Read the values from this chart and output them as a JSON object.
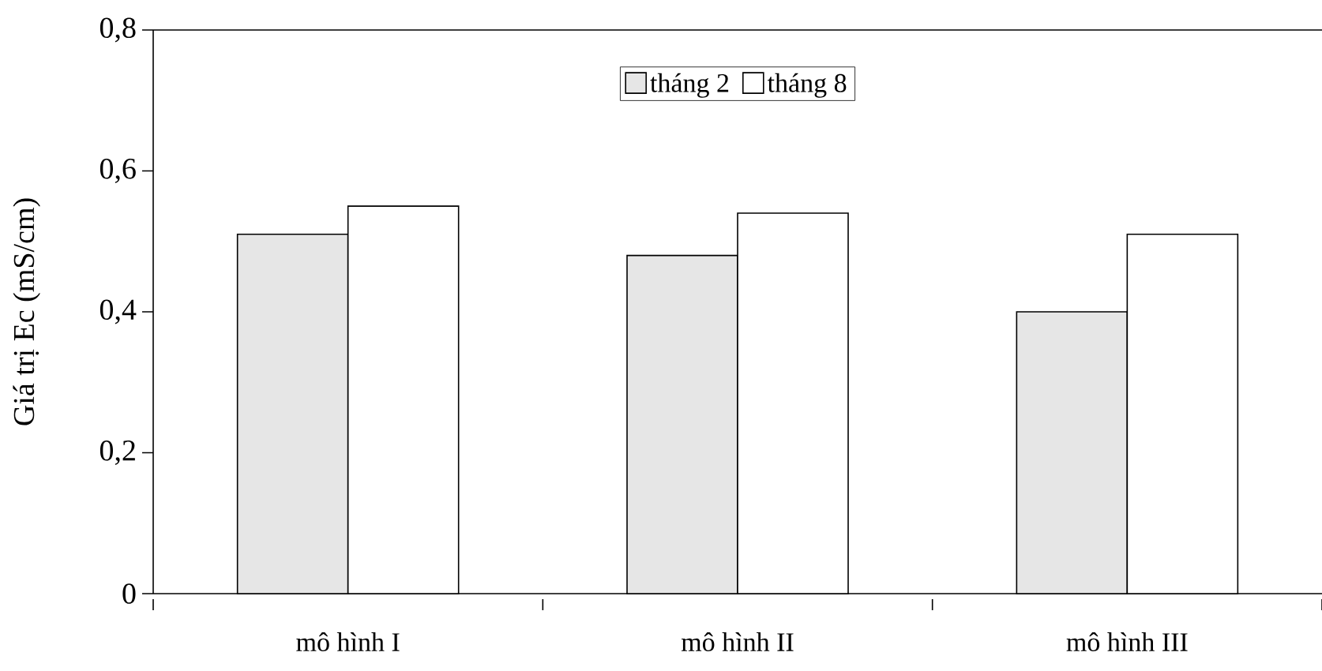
{
  "chart_data": {
    "type": "bar",
    "ylabel": "Giá trị Ec (mS/cm)",
    "categories": [
      "mô hình I",
      "mô hình II",
      "mô hình III"
    ],
    "series": [
      {
        "name": "tháng 2",
        "color": "#e6e6e6",
        "values": [
          0.51,
          0.48,
          0.4
        ]
      },
      {
        "name": "tháng 8",
        "color": "#ffffff",
        "values": [
          0.55,
          0.54,
          0.51
        ]
      }
    ],
    "ylim": [
      0,
      0.8
    ],
    "yticks": [
      0,
      {
        "value": 0.2,
        "label": "0,2"
      },
      {
        "value": 0.4,
        "label": "0,4"
      },
      {
        "value": 0.6,
        "label": "0,6"
      },
      {
        "value": 0.8,
        "label": "0,8"
      }
    ],
    "grid": false,
    "legend": "top"
  }
}
